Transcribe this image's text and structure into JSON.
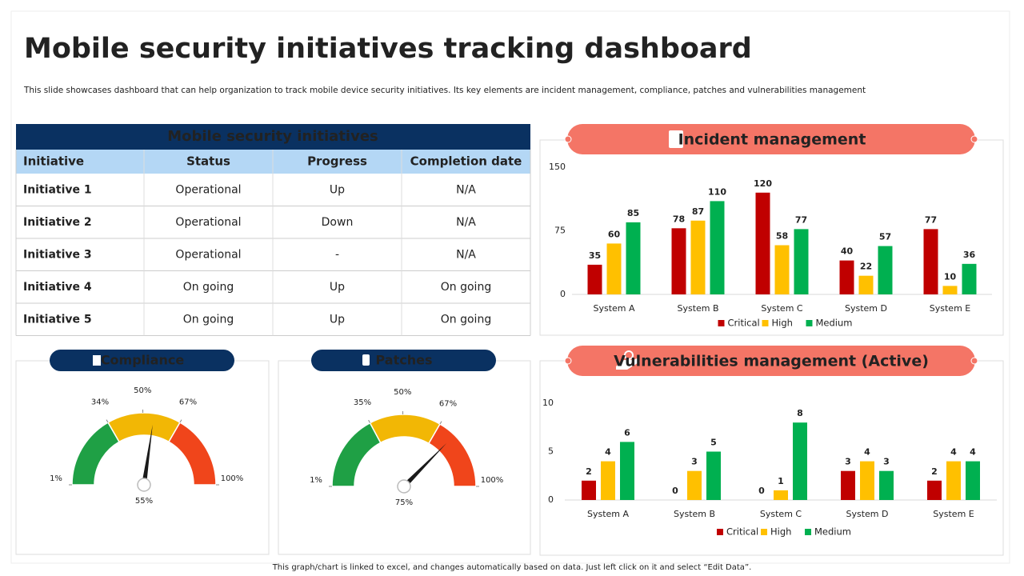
{
  "title": "Mobile security initiatives tracking dashboard",
  "subtitle": "This slide showcases dashboard that can help organization to track mobile device security initiatives. Its key elements  are incident management,  compliance, patches and vulnerabilities management",
  "table": {
    "title": "Mobile security initiatives",
    "columns": [
      "Initiative",
      "Status",
      "Progress",
      "Completion date"
    ],
    "rows": [
      [
        "Initiative 1",
        "Operational",
        "Up",
        "N/A"
      ],
      [
        "Initiative 2",
        "Operational",
        "Down",
        "N/A"
      ],
      [
        "Initiative 3",
        "Operational",
        "-",
        "N/A"
      ],
      [
        "Initiative 4",
        "On going",
        "Up",
        "On going"
      ],
      [
        "Initiative 5",
        "On going",
        "Up",
        "On going"
      ]
    ]
  },
  "chart_data": [
    {
      "type": "bar",
      "title": "Incident management",
      "categories": [
        "System A",
        "System B",
        "System C",
        "System D",
        "System E"
      ],
      "series": [
        {
          "name": "Critical",
          "color": "#c00000",
          "values": [
            35,
            78,
            120,
            40,
            77
          ]
        },
        {
          "name": "High",
          "color": "#ffc000",
          "values": [
            60,
            87,
            58,
            22,
            10
          ]
        },
        {
          "name": "Medium",
          "color": "#00b050",
          "values": [
            85,
            110,
            77,
            57,
            36
          ]
        }
      ],
      "ylim": [
        0,
        150
      ],
      "yticks": [
        0,
        75,
        150
      ]
    },
    {
      "type": "bar",
      "title": "Vulnerabilities management (Active)",
      "categories": [
        "System A",
        "System B",
        "System C",
        "System D",
        "System E"
      ],
      "series": [
        {
          "name": "Critical",
          "color": "#c00000",
          "values": [
            2,
            0,
            0,
            3,
            2
          ]
        },
        {
          "name": "High",
          "color": "#ffc000",
          "values": [
            4,
            3,
            1,
            4,
            4
          ]
        },
        {
          "name": "Medium",
          "color": "#00b050",
          "values": [
            6,
            5,
            8,
            3,
            4
          ]
        }
      ],
      "ylim": [
        0,
        10
      ],
      "yticks": [
        0,
        5,
        10
      ]
    },
    {
      "type": "gauge",
      "title": "Compliance",
      "value": 55,
      "value_label": "55%",
      "lim": [
        1,
        100
      ],
      "ticks": [
        {
          "value": 1,
          "label": "1%"
        },
        {
          "value": 34,
          "label": "34%"
        },
        {
          "value": 50,
          "label": "50%"
        },
        {
          "value": 67,
          "label": "67%"
        },
        {
          "value": 100,
          "label": "100%"
        }
      ],
      "bands": [
        {
          "from": 1,
          "to": 34,
          "color": "#1fa045"
        },
        {
          "from": 34,
          "to": 67,
          "color": "#f2b705"
        },
        {
          "from": 67,
          "to": 100,
          "color": "#f0451b"
        }
      ]
    },
    {
      "type": "gauge",
      "title": "Patches",
      "value": 75,
      "value_label": "75%",
      "lim": [
        1,
        100
      ],
      "ticks": [
        {
          "value": 1,
          "label": "1%"
        },
        {
          "value": 35,
          "label": "35%"
        },
        {
          "value": 50,
          "label": "50%"
        },
        {
          "value": 67,
          "label": "67%"
        },
        {
          "value": 100,
          "label": "100%"
        }
      ],
      "bands": [
        {
          "from": 1,
          "to": 35,
          "color": "#1fa045"
        },
        {
          "from": 35,
          "to": 67,
          "color": "#f2b705"
        },
        {
          "from": 67,
          "to": 100,
          "color": "#f0451b"
        }
      ]
    }
  ],
  "footer": "This graph/chart is linked to excel, and changes automatically based on data. Just left click on it and select “Edit Data”."
}
